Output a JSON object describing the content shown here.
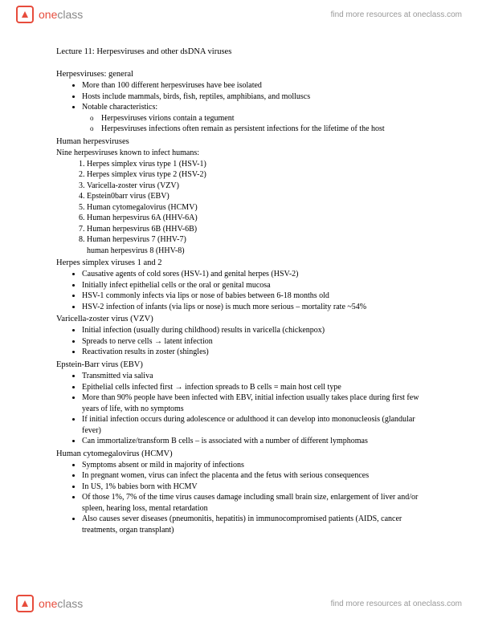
{
  "brand": {
    "one": "one",
    "class": "class"
  },
  "header_link": "find more resources at oneclass.com",
  "footer_link": "find more resources at oneclass.com",
  "title": "Lecture 11: Herpesviruses and other dsDNA viruses",
  "s1": {
    "head": "Herpesviruses: general",
    "b1": "More than 100 different herpesviruses have bee isolated",
    "b2": "Hosts include mammals, birds, fish, reptiles, amphibians, and molluscs",
    "b3": "Notable characteristics:",
    "b3a": "Herpesviruses virions contain a tegument",
    "b3b": "Herpesviruses infections often remain as persistent infections for the lifetime of the host"
  },
  "s2": {
    "head": "Human herpesviruses",
    "intro": "Nine herpesviruses known to infect humans:",
    "n1": "Herpes simplex virus type 1 (HSV-1)",
    "n2": "Herpes simplex virus type 2 (HSV-2)",
    "n3": "Varicella-zoster virus (VZV)",
    "n4": "Epstein0barr virus (EBV)",
    "n5": "Human cytomegalovirus (HCMV)",
    "n6": "Human herpesvirus 6A (HHV-6A)",
    "n7": "Human herpesvirus 6B (HHV-6B)",
    "n8": "Human herpesvirus 7 (HHV-7)",
    "n8b": "human herpesvirus 8 (HHV-8)"
  },
  "s3": {
    "head": "Herpes simplex viruses 1 and 2",
    "b1": "Causative agents of cold sores (HSV-1) and genital herpes (HSV-2)",
    "b2": "Initially infect epithelial cells or the oral or genital mucosa",
    "b3": "HSV-1 commonly infects via lips or nose of babies between 6-18 months old",
    "b4": "HSV-2 infection of infants (via lips or nose) is much more serious – mortality rate ~54%"
  },
  "s4": {
    "head": "Varicella-zoster virus (VZV)",
    "b1": "Initial infection (usually during childhood) results in varicella (chickenpox)",
    "b2a": "Spreads to nerve cells ",
    "b2b": " latent infection",
    "b3": "Reactivation results in zoster (shingles)"
  },
  "s5": {
    "head": "Epstein-Barr virus (EBV)",
    "b1": "Transmitted via saliva",
    "b2a": "Epithelial cells infected first ",
    "b2b": " infection spreads to B cells = main host cell type",
    "b3": "More than 90% people have been infected with EBV, initial infection usually takes place during first few years of life, with no symptoms",
    "b4": "If initial infection occurs during adolescence or adulthood it can develop into mononucleosis (glandular fever)",
    "b5": "Can immortalize/transform B cells – is associated with a number of different lymphomas"
  },
  "s6": {
    "head": "Human cytomegalovirus (HCMV)",
    "b1": "Symptoms absent or mild in majority of infections",
    "b2": "In pregnant women, virus can infect the placenta and the fetus with serious consequences",
    "b3": "In US, 1% babies born with HCMV",
    "b4": "Of those 1%, 7% of the time virus causes damage including small brain size, enlargement of liver and/or spleen, hearing loss, mental retardation",
    "b5": "Also causes sever diseases (pneumonitis, hepatitis) in immunocompromised patients (AIDS, cancer treatments, organ transplant)"
  },
  "arrow": "→"
}
